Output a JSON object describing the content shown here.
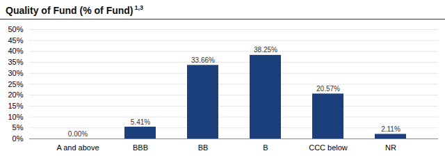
{
  "chart_data": {
    "type": "bar",
    "title": "Quality of Fund (% of Fund)",
    "annotations": [
      "1,3"
    ],
    "categories": [
      "A and above",
      "BBB",
      "BB",
      "B",
      "CCC below",
      "NR"
    ],
    "values": [
      0.0,
      5.41,
      33.66,
      38.25,
      20.57,
      2.11
    ],
    "value_labels": [
      "0.00%",
      "5.41%",
      "33.66%",
      "38.25%",
      "20.57%",
      "2.11%"
    ],
    "data_labels": true,
    "color": "#1b3f7a",
    "ylim": [
      0,
      50
    ],
    "yticks": [
      {
        "value": 0,
        "label": "0%"
      },
      {
        "value": 5,
        "label": "5%"
      },
      {
        "value": 10,
        "label": "10%"
      },
      {
        "value": 15,
        "label": "15%"
      },
      {
        "value": 20,
        "label": "20%"
      },
      {
        "value": 25,
        "label": "25%"
      },
      {
        "value": 30,
        "label": "30%"
      },
      {
        "value": 35,
        "label": "35%"
      },
      {
        "value": 40,
        "label": "40%"
      },
      {
        "value": 45,
        "label": "45%"
      },
      {
        "value": 50,
        "label": "50%"
      }
    ],
    "grid": true
  }
}
